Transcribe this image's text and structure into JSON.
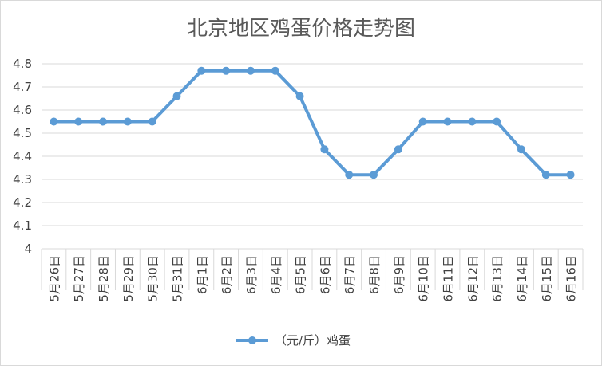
{
  "chart_data": {
    "type": "line",
    "title": "北京地区鸡蛋价格走势图",
    "xlabel": "",
    "ylabel": "",
    "categories": [
      "5月26日",
      "5月27日",
      "5月28日",
      "5月29日",
      "5月30日",
      "5月31日",
      "6月1日",
      "6月2日",
      "6月3日",
      "6月4日",
      "6月5日",
      "6月6日",
      "6月7日",
      "6月8日",
      "6月9日",
      "6月10日",
      "6月11日",
      "6月12日",
      "6月13日",
      "6月14日",
      "6月15日",
      "6月16日"
    ],
    "series": [
      {
        "name": "（元/斤）鸡蛋",
        "values": [
          4.55,
          4.55,
          4.55,
          4.55,
          4.55,
          4.66,
          4.77,
          4.77,
          4.77,
          4.77,
          4.66,
          4.43,
          4.32,
          4.32,
          4.43,
          4.55,
          4.55,
          4.55,
          4.55,
          4.43,
          4.32,
          4.32
        ]
      }
    ],
    "ylim": [
      4,
      4.8
    ],
    "yticks": [
      "4",
      "4.1",
      "4.2",
      "4.3",
      "4.4",
      "4.5",
      "4.6",
      "4.7",
      "4.8"
    ],
    "grid": true,
    "legend_position": "bottom",
    "colors": {
      "series": "#5b9bd5",
      "grid": "#d9d9d9",
      "text": "#404040",
      "title": "#595959"
    }
  }
}
